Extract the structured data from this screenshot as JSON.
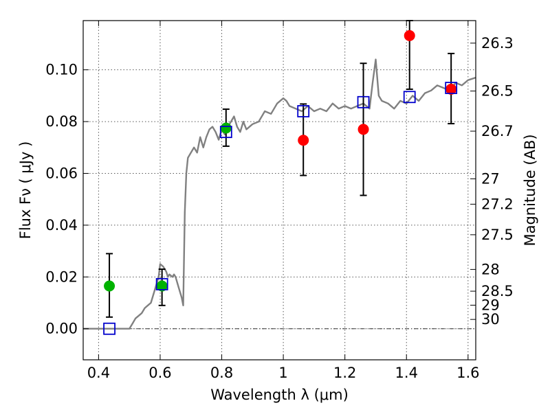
{
  "chart_data": {
    "type": "scatter",
    "xlabel": "Wavelength  λ (μm)",
    "ylabel": "Flux  Fν  ( μJy )",
    "y2label": "Magnitude (AB)",
    "xlim": [
      0.35,
      1.625
    ],
    "ylim": [
      -0.012,
      0.119
    ],
    "x_ticks": [
      0.4,
      0.6,
      0.8,
      1.0,
      1.2,
      1.4,
      1.6
    ],
    "x_tick_labels": [
      "0.4",
      "0.6",
      "0.8",
      "1",
      "1.2",
      "1.4",
      "1.6"
    ],
    "y_ticks": [
      0.0,
      0.02,
      0.04,
      0.06,
      0.08,
      0.1
    ],
    "y_tick_labels": [
      "0.00",
      "0.02",
      "0.04",
      "0.06",
      "0.08",
      "0.10"
    ],
    "y2_ticks": [
      {
        "label": "26.3",
        "flux": 0.1103
      },
      {
        "label": "26.5",
        "flux": 0.0918
      },
      {
        "label": "26.7",
        "flux": 0.0763
      },
      {
        "label": "27",
        "flux": 0.0579
      },
      {
        "label": "27.2",
        "flux": 0.0481
      },
      {
        "label": "27.5",
        "flux": 0.0363
      },
      {
        "label": "28",
        "flux": 0.0229
      },
      {
        "label": "28.5",
        "flux": 0.0145
      },
      {
        "label": "29",
        "flux": 0.0091
      },
      {
        "label": "30",
        "flux": 0.0036
      }
    ],
    "grid": true,
    "zero_line": true,
    "colors": {
      "model": "#808080",
      "green": "#00b200",
      "red": "#ff0000",
      "square": "#0000cc",
      "errorbar": "#000000"
    },
    "model_spectrum": {
      "x": [
        0.35,
        0.5,
        0.51,
        0.52,
        0.53,
        0.54,
        0.55,
        0.56,
        0.57,
        0.58,
        0.59,
        0.595,
        0.6,
        0.61,
        0.62,
        0.625,
        0.63,
        0.64,
        0.645,
        0.65,
        0.66,
        0.67,
        0.675,
        0.68,
        0.685,
        0.69,
        0.7,
        0.71,
        0.72,
        0.73,
        0.74,
        0.75,
        0.76,
        0.77,
        0.78,
        0.79,
        0.8,
        0.81,
        0.82,
        0.83,
        0.84,
        0.85,
        0.86,
        0.87,
        0.88,
        0.9,
        0.92,
        0.94,
        0.96,
        0.98,
        1.0,
        1.01,
        1.02,
        1.04,
        1.06,
        1.08,
        1.1,
        1.12,
        1.14,
        1.16,
        1.18,
        1.2,
        1.22,
        1.24,
        1.26,
        1.28,
        1.29,
        1.3,
        1.31,
        1.32,
        1.34,
        1.36,
        1.38,
        1.4,
        1.42,
        1.44,
        1.46,
        1.48,
        1.5,
        1.52,
        1.54,
        1.56,
        1.58,
        1.6,
        1.625
      ],
      "y": [
        0.0,
        0.0,
        0.002,
        0.004,
        0.005,
        0.006,
        0.008,
        0.009,
        0.01,
        0.014,
        0.018,
        0.02,
        0.025,
        0.024,
        0.022,
        0.02,
        0.021,
        0.02,
        0.021,
        0.02,
        0.016,
        0.012,
        0.009,
        0.045,
        0.06,
        0.066,
        0.068,
        0.07,
        0.068,
        0.074,
        0.07,
        0.074,
        0.077,
        0.078,
        0.076,
        0.073,
        0.077,
        0.075,
        0.078,
        0.08,
        0.082,
        0.078,
        0.076,
        0.08,
        0.077,
        0.079,
        0.08,
        0.084,
        0.083,
        0.087,
        0.089,
        0.088,
        0.086,
        0.085,
        0.084,
        0.086,
        0.084,
        0.085,
        0.084,
        0.087,
        0.085,
        0.086,
        0.085,
        0.086,
        0.087,
        0.085,
        0.095,
        0.104,
        0.09,
        0.088,
        0.087,
        0.085,
        0.088,
        0.087,
        0.09,
        0.088,
        0.091,
        0.092,
        0.094,
        0.093,
        0.092,
        0.095,
        0.094,
        0.096,
        0.097
      ]
    },
    "series": [
      {
        "marker": "circle",
        "color": "green",
        "points": [
          {
            "x": 0.435,
            "y": 0.0165,
            "err_low": 0.0045,
            "err_high": 0.029
          },
          {
            "x": 0.606,
            "y": 0.0165,
            "err_low": 0.009,
            "err_high": 0.023
          },
          {
            "x": 0.814,
            "y": 0.0775,
            "err_low": 0.0705,
            "err_high": 0.0848
          }
        ]
      },
      {
        "marker": "circle",
        "color": "red",
        "points": [
          {
            "x": 1.065,
            "y": 0.0728,
            "err_low": 0.0592,
            "err_high": 0.0868
          },
          {
            "x": 1.26,
            "y": 0.077,
            "err_low": 0.0515,
            "err_high": 0.1025
          },
          {
            "x": 1.41,
            "y": 0.1132,
            "err_low": 0.0925,
            "err_high": 0.119
          },
          {
            "x": 1.545,
            "y": 0.0925,
            "err_low": 0.0792,
            "err_high": 0.1063
          }
        ]
      },
      {
        "marker": "square",
        "color": "square",
        "points": [
          {
            "x": 0.435,
            "y": 0.0
          },
          {
            "x": 0.606,
            "y": 0.0172
          },
          {
            "x": 0.814,
            "y": 0.076
          },
          {
            "x": 1.065,
            "y": 0.084
          },
          {
            "x": 1.26,
            "y": 0.0875
          },
          {
            "x": 1.41,
            "y": 0.0895
          },
          {
            "x": 1.545,
            "y": 0.093
          }
        ]
      }
    ]
  }
}
